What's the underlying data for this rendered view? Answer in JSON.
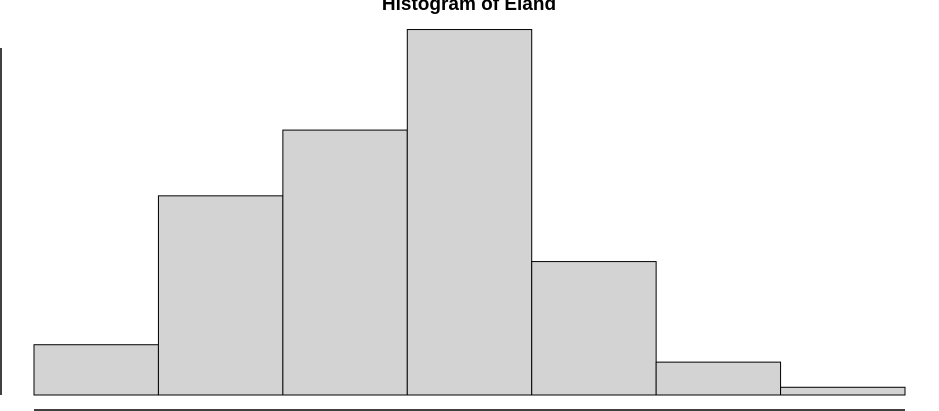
{
  "chart_data": {
    "type": "bar",
    "title": "Histogram of Eland",
    "xlabel": "",
    "ylabel": "",
    "bins": 7,
    "values": [
      2.6,
      10.3,
      13.7,
      18.9,
      6.9,
      1.7,
      0.4
    ],
    "ylim": [
      0,
      19.6
    ],
    "grid": false,
    "legend": "none",
    "colors": {
      "bar_fill": "#d3d3d3",
      "bar_stroke": "#000000",
      "axis": "#000000",
      "background": "#ffffff"
    }
  }
}
